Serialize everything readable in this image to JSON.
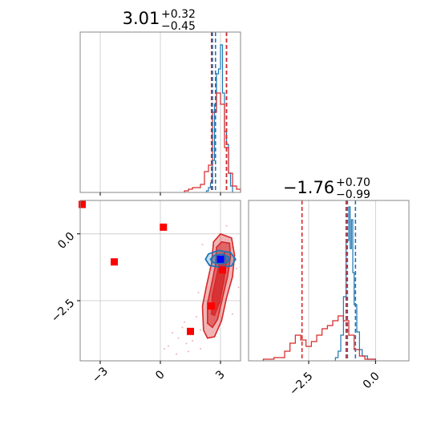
{
  "chart_data": [
    {
      "type": "histogram",
      "panel": "top-left",
      "title_main": "3.01",
      "title_plus": "+0.32",
      "title_minus": "−0.45",
      "xlim": [
        -4,
        4
      ],
      "ylim": [
        0,
        1
      ],
      "grid": true,
      "quantile_lines": {
        "red": [
          2.55,
          3.3
        ],
        "blue": [
          2.6,
          2.75,
          3.3
        ]
      },
      "series": [
        {
          "color": "#1f77b4",
          "bins": [
            [
              2.3,
              2.4,
              0.01
            ],
            [
              2.4,
              2.5,
              0.03
            ],
            [
              2.5,
              2.6,
              0.06
            ],
            [
              2.6,
              2.7,
              0.2
            ],
            [
              2.7,
              2.8,
              0.55
            ],
            [
              2.8,
              2.9,
              0.74
            ],
            [
              2.9,
              3.0,
              0.77
            ],
            [
              3.0,
              3.1,
              0.92
            ],
            [
              3.1,
              3.2,
              0.62
            ],
            [
              3.2,
              3.3,
              0.38
            ],
            [
              3.3,
              3.4,
              0.3
            ],
            [
              3.4,
              3.5,
              0.12
            ],
            [
              3.5,
              3.6,
              0.04
            ]
          ]
        },
        {
          "color": "#d62728",
          "bins": [
            [
              1.2,
              1.4,
              0.01
            ],
            [
              1.4,
              1.6,
              0.02
            ],
            [
              1.6,
              1.8,
              0.03
            ],
            [
              1.8,
              2.0,
              0.03
            ],
            [
              2.0,
              2.2,
              0.05
            ],
            [
              2.2,
              2.4,
              0.13
            ],
            [
              2.4,
              2.6,
              0.17
            ],
            [
              2.6,
              2.8,
              0.5
            ],
            [
              2.8,
              3.0,
              0.62
            ],
            [
              3.0,
              3.2,
              0.55
            ],
            [
              3.2,
              3.4,
              0.28
            ],
            [
              3.4,
              3.6,
              0.12
            ],
            [
              3.6,
              3.8,
              0.04
            ],
            [
              3.8,
              4.0,
              0.02
            ]
          ]
        }
      ]
    },
    {
      "type": "contour-scatter",
      "panel": "bottom-left",
      "xlim": [
        -4,
        4
      ],
      "ylim": [
        -4.75,
        1.25
      ],
      "x_ticks": [
        "−3",
        "0",
        "3"
      ],
      "x_tick_values": [
        -3,
        0,
        3
      ],
      "y_ticks": [
        "0.0",
        "−2.5"
      ],
      "y_tick_values": [
        0,
        -2.5
      ],
      "grid": true,
      "red_markers": [
        [
          -3.9,
          1.1
        ],
        [
          -2.3,
          -1.05
        ],
        [
          0.15,
          0.25
        ],
        [
          1.5,
          -3.65
        ],
        [
          2.55,
          -2.7
        ],
        [
          3.1,
          -1.35
        ]
      ],
      "blue_marker": [
        3.0,
        -0.95
      ],
      "red_contours": [
        [
          [
            2.15,
            -3.6
          ],
          [
            2.1,
            -2.7
          ],
          [
            2.3,
            -1.95
          ],
          [
            2.55,
            -1.1
          ],
          [
            2.65,
            -0.3
          ],
          [
            3.0,
            0
          ],
          [
            3.55,
            -0.15
          ],
          [
            3.7,
            -0.8
          ],
          [
            3.6,
            -1.6
          ],
          [
            3.3,
            -2.4
          ],
          [
            3.05,
            -3.25
          ],
          [
            2.7,
            -3.85
          ],
          [
            2.35,
            -3.9
          ]
        ],
        [
          [
            2.35,
            -3.35
          ],
          [
            2.35,
            -2.6
          ],
          [
            2.55,
            -1.9
          ],
          [
            2.75,
            -1.15
          ],
          [
            2.8,
            -0.5
          ],
          [
            3.05,
            -0.3
          ],
          [
            3.45,
            -0.35
          ],
          [
            3.5,
            -0.85
          ],
          [
            3.35,
            -1.6
          ],
          [
            3.1,
            -2.4
          ],
          [
            2.85,
            -3.2
          ],
          [
            2.6,
            -3.5
          ]
        ],
        [
          [
            2.55,
            -3.0
          ],
          [
            2.6,
            -2.3
          ],
          [
            2.8,
            -1.6
          ],
          [
            2.95,
            -1.05
          ],
          [
            3.2,
            -0.7
          ],
          [
            3.3,
            -1.05
          ],
          [
            3.15,
            -1.8
          ],
          [
            2.95,
            -2.55
          ],
          [
            2.7,
            -3.05
          ]
        ]
      ],
      "blue_contours": [
        [
          [
            2.25,
            -0.95
          ],
          [
            2.4,
            -0.75
          ],
          [
            2.9,
            -0.62
          ],
          [
            3.5,
            -0.7
          ],
          [
            3.75,
            -0.95
          ],
          [
            3.55,
            -1.2
          ],
          [
            2.95,
            -1.25
          ],
          [
            2.45,
            -1.18
          ]
        ],
        [
          [
            2.5,
            -0.95
          ],
          [
            2.7,
            -0.8
          ],
          [
            3.1,
            -0.76
          ],
          [
            3.45,
            -0.88
          ],
          [
            3.35,
            -1.07
          ],
          [
            2.95,
            -1.12
          ],
          [
            2.6,
            -1.07
          ]
        ],
        [
          [
            2.8,
            -0.95
          ],
          [
            3.0,
            -0.86
          ],
          [
            3.25,
            -0.92
          ],
          [
            3.1,
            -1.02
          ],
          [
            2.9,
            -1.02
          ]
        ]
      ],
      "faint_points": [
        [
          1.2,
          -3.3
        ],
        [
          0.9,
          -3.9
        ],
        [
          0.4,
          -4.2
        ],
        [
          1.6,
          -4.0
        ],
        [
          2.0,
          -4.3
        ],
        [
          1.1,
          -3.5
        ],
        [
          0.6,
          -3.7
        ],
        [
          1.8,
          -3.1
        ],
        [
          1.4,
          -4.4
        ],
        [
          0.2,
          -4.3
        ],
        [
          3.6,
          -0.5
        ],
        [
          3.8,
          -1.3
        ],
        [
          3.3,
          0.3
        ],
        [
          2.1,
          -0.4
        ],
        [
          3.9,
          -2.0
        ],
        [
          1.9,
          -2.2
        ],
        [
          2.0,
          -3.6
        ],
        [
          3.6,
          -3.0
        ],
        [
          0.8,
          -4.5
        ],
        [
          1.3,
          -4.1
        ]
      ]
    },
    {
      "type": "histogram",
      "panel": "bottom-right",
      "title_main": "−1.76",
      "title_plus": "+0.70",
      "title_minus": "−0.99",
      "xlim": [
        -4.75,
        1.25
      ],
      "ylim": [
        0,
        1
      ],
      "x_ticks": [
        "−2.5",
        "0.0"
      ],
      "x_tick_values": [
        -2.5,
        0
      ],
      "grid": true,
      "quantile_lines": {
        "red": [
          -2.75,
          -1.1
        ],
        "blue": [
          -1.05,
          -0.75
        ]
      },
      "series": [
        {
          "color": "#1f77b4",
          "bins": [
            [
              -1.5,
              -1.4,
              0.02
            ],
            [
              -1.4,
              -1.3,
              0.06
            ],
            [
              -1.3,
              -1.2,
              0.16
            ],
            [
              -1.2,
              -1.1,
              0.4
            ],
            [
              -1.1,
              -1.0,
              0.75
            ],
            [
              -1.0,
              -0.95,
              0.96
            ],
            [
              -0.95,
              -0.9,
              0.7
            ],
            [
              -0.9,
              -0.85,
              0.88
            ],
            [
              -0.85,
              -0.8,
              0.55
            ],
            [
              -0.8,
              -0.7,
              0.35
            ],
            [
              -0.7,
              -0.6,
              0.18
            ],
            [
              -0.6,
              -0.5,
              0.07
            ],
            [
              -0.5,
              -0.3,
              0.03
            ],
            [
              -0.3,
              0.0,
              0.01
            ]
          ]
        },
        {
          "color": "#d62728",
          "bins": [
            [
              -4.2,
              -3.8,
              0.01
            ],
            [
              -3.8,
              -3.4,
              0.02
            ],
            [
              -3.4,
              -3.2,
              0.06
            ],
            [
              -3.2,
              -3.0,
              0.11
            ],
            [
              -3.0,
              -2.8,
              0.16
            ],
            [
              -2.8,
              -2.6,
              0.13
            ],
            [
              -2.6,
              -2.4,
              0.09
            ],
            [
              -2.4,
              -2.2,
              0.12
            ],
            [
              -2.2,
              -2.0,
              0.16
            ],
            [
              -2.0,
              -1.8,
              0.2
            ],
            [
              -1.8,
              -1.6,
              0.22
            ],
            [
              -1.6,
              -1.4,
              0.25
            ],
            [
              -1.4,
              -1.2,
              0.28
            ],
            [
              -1.2,
              -1.0,
              0.25
            ],
            [
              -1.0,
              -0.8,
              0.16
            ],
            [
              -0.8,
              -0.6,
              0.07
            ],
            [
              -0.6,
              -0.4,
              0.03
            ],
            [
              -0.4,
              0.0,
              0.01
            ]
          ]
        }
      ]
    }
  ]
}
